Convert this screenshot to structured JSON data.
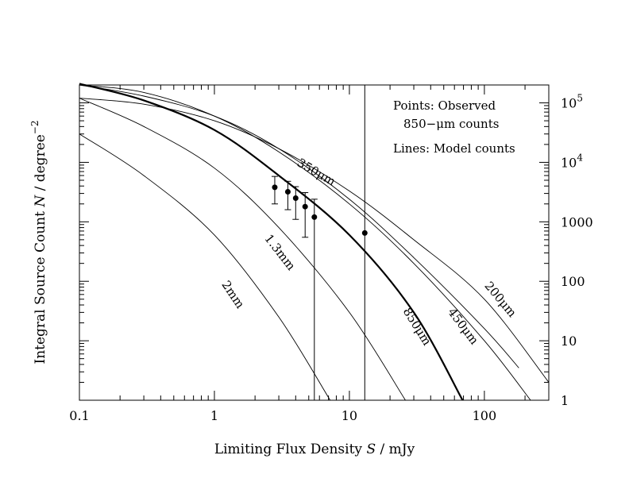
{
  "chart_data": {
    "type": "line",
    "xlabel_prefix": "Limiting Flux Density ",
    "xlabel_var": "S",
    "xlabel_suffix": " / mJy",
    "ylabel_prefix": "Integral Source Count ",
    "ylabel_var": "N",
    "ylabel_suffix": " / degree",
    "ylabel_exp": "−2",
    "x_scale": "log",
    "y_scale": "log",
    "xlim": [
      0.1,
      300
    ],
    "ylim": [
      1,
      200000
    ],
    "x_ticks": [
      {
        "value": 0.1,
        "label": "0.1"
      },
      {
        "value": 1,
        "label": "1"
      },
      {
        "value": 10,
        "label": "10"
      },
      {
        "value": 100,
        "label": "100"
      }
    ],
    "y_ticks_right": [
      {
        "value": 1,
        "label": "1",
        "exp": ""
      },
      {
        "value": 10,
        "label": "10",
        "exp": ""
      },
      {
        "value": 100,
        "label": "100",
        "exp": ""
      },
      {
        "value": 1000,
        "label": "1000",
        "exp": ""
      },
      {
        "value": 10000,
        "label": "10",
        "exp": "4"
      },
      {
        "value": 100000,
        "label": "10",
        "exp": "5"
      }
    ],
    "legend": [
      "Points: Observed",
      "850−μm counts",
      "Lines: Model counts"
    ],
    "series": [
      {
        "name": "350μm",
        "thick": false,
        "x": [
          0.1,
          0.3,
          1,
          3,
          10,
          30,
          100,
          180
        ],
        "y": [
          200000,
          130000,
          60000,
          17000,
          2400,
          250,
          16,
          3.5
        ]
      },
      {
        "name": "200μm",
        "thick": false,
        "x": [
          0.1,
          0.3,
          1,
          3,
          10,
          30,
          100,
          300
        ],
        "y": [
          120000,
          95000,
          50000,
          17000,
          3300,
          500,
          50,
          2
        ]
      },
      {
        "name": "450μm",
        "thick": false,
        "x": [
          0.1,
          0.3,
          1,
          3,
          10,
          30,
          100,
          220
        ],
        "y": [
          200000,
          150000,
          60000,
          15000,
          2000,
          200,
          10,
          1
        ]
      },
      {
        "name": "850μm",
        "thick": true,
        "x": [
          0.1,
          0.3,
          1,
          3,
          10,
          30,
          69
        ],
        "y": [
          210000,
          110000,
          35000,
          6000,
          600,
          30,
          1
        ]
      },
      {
        "name": "1.3mm",
        "thick": false,
        "x": [
          0.1,
          0.3,
          1,
          3,
          10,
          26
        ],
        "y": [
          120000,
          40000,
          8000,
          800,
          30,
          1
        ]
      },
      {
        "name": "2mm",
        "thick": false,
        "x": [
          0.1,
          0.3,
          1,
          3,
          7.2
        ],
        "y": [
          30000,
          6000,
          600,
          25,
          1
        ]
      }
    ],
    "observed": {
      "name": "850−μm counts",
      "points": [
        {
          "x": 2.8,
          "y": 3800,
          "y_lo": 2000,
          "y_hi": 5800
        },
        {
          "x": 3.5,
          "y": 3200,
          "y_lo": 1600,
          "y_hi": 4800
        },
        {
          "x": 4.0,
          "y": 2500,
          "y_lo": 1100,
          "y_hi": 3900
        },
        {
          "x": 4.7,
          "y": 1800,
          "y_lo": 550,
          "y_hi": 3100
        },
        {
          "x": 5.5,
          "y": 1200,
          "y_lo": 1,
          "y_hi": 2400
        },
        {
          "x": 13,
          "y": 650,
          "y_lo": 1,
          "y_hi": 200000
        }
      ]
    },
    "curve_labels": [
      {
        "series": "350μm",
        "text": "350μm",
        "x": 5.5,
        "y": 6000,
        "angle": 30
      },
      {
        "series": "200μm",
        "text": "200μm",
        "x": 125,
        "y": 45,
        "angle": 50
      },
      {
        "series": "450μm",
        "text": "450μm",
        "x": 66,
        "y": 16,
        "angle": 53
      },
      {
        "series": "850μm",
        "text": "850μm",
        "x": 30,
        "y": 16,
        "angle": 58
      },
      {
        "series": "1.3mm",
        "text": "1.3mm",
        "x": 2.9,
        "y": 280,
        "angle": 52
      },
      {
        "series": "2mm",
        "text": "2mm",
        "x": 1.3,
        "y": 55,
        "angle": 56
      }
    ]
  }
}
